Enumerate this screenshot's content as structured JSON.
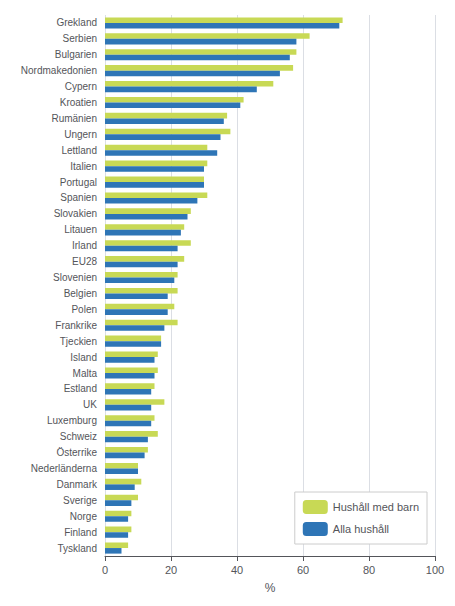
{
  "chart_data": {
    "type": "bar",
    "orientation": "horizontal",
    "categories": [
      "Grekland",
      "Serbien",
      "Bulgarien",
      "Nordmakedonien",
      "Cypern",
      "Kroatien",
      "Rumänien",
      "Ungern",
      "Lettland",
      "Italien",
      "Portugal",
      "Spanien",
      "Slovakien",
      "Litauen",
      "Irland",
      "EU28",
      "Slovenien",
      "Belgien",
      "Polen",
      "Frankrike",
      "Tjeckien",
      "Island",
      "Malta",
      "Estland",
      "UK",
      "Luxemburg",
      "Schweiz",
      "Österrike",
      "Nederländerna",
      "Danmark",
      "Sverige",
      "Norge",
      "Finland",
      "Tyskland"
    ],
    "series": [
      {
        "name": "Hushåll med barn",
        "color": "#c8d955",
        "values": [
          72,
          62,
          58,
          57,
          51,
          42,
          37,
          38,
          31,
          31,
          30,
          31,
          26,
          24,
          26,
          24,
          22,
          22,
          21,
          22,
          17,
          16,
          16,
          15,
          18,
          15,
          16,
          13,
          10,
          11,
          10,
          8,
          8,
          7
        ]
      },
      {
        "name": "Alla hushåll",
        "color": "#2e75b6",
        "values": [
          71,
          58,
          56,
          53,
          46,
          41,
          36,
          35,
          34,
          30,
          30,
          28,
          25,
          23,
          22,
          22,
          21,
          19,
          19,
          18,
          17,
          15,
          15,
          14,
          14,
          14,
          13,
          12,
          10,
          9,
          8,
          7,
          7,
          5
        ]
      }
    ],
    "xlabel": "%",
    "xlim": [
      0,
      100
    ],
    "xticks": [
      0,
      20,
      40,
      60,
      80,
      100
    ],
    "grid": true,
    "legend": "lower right"
  }
}
